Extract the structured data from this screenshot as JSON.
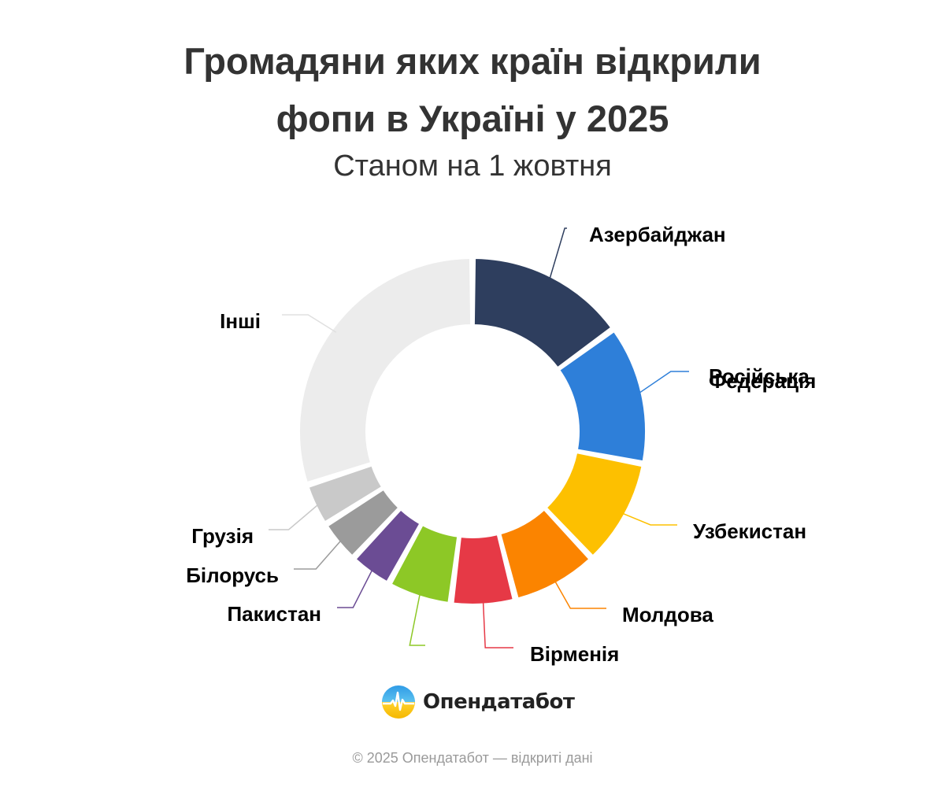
{
  "header": {
    "title_line1": "Громадяни яких країн відкрили",
    "title_line2": "фопи в Україні у 2025",
    "subtitle": "Станом на 1 жовтня"
  },
  "chart_data": {
    "type": "pie",
    "donut": true,
    "value_unit": "share",
    "slices": [
      {
        "label": "Азербайджан",
        "value": 15,
        "color": "#2e3e5e"
      },
      {
        "label": "Російська\nФедерація",
        "value": 13,
        "color": "#2e7fd9"
      },
      {
        "label": "Узбекистан",
        "value": 10,
        "color": "#fdc000"
      },
      {
        "label": "Молдова",
        "value": 8,
        "color": "#fb8400"
      },
      {
        "label": "Вірменія",
        "value": 6,
        "color": "#e63946"
      },
      {
        "label": "",
        "value": 6,
        "color": "#8dc826"
      },
      {
        "label": "Пакистан",
        "value": 4,
        "color": "#6b4c94"
      },
      {
        "label": "Білорусь",
        "value": 4,
        "color": "#9b9b9b"
      },
      {
        "label": "Грузія",
        "value": 4,
        "color": "#c9c9c9"
      },
      {
        "label": "Інші",
        "value": 30,
        "color": "#ececec"
      }
    ]
  },
  "branding": {
    "logo_text": "Опендатабот",
    "logo_icon": "opendatabot-logo-icon"
  },
  "footer": {
    "text": "© 2025 Опендатабот — відкриті дані"
  }
}
